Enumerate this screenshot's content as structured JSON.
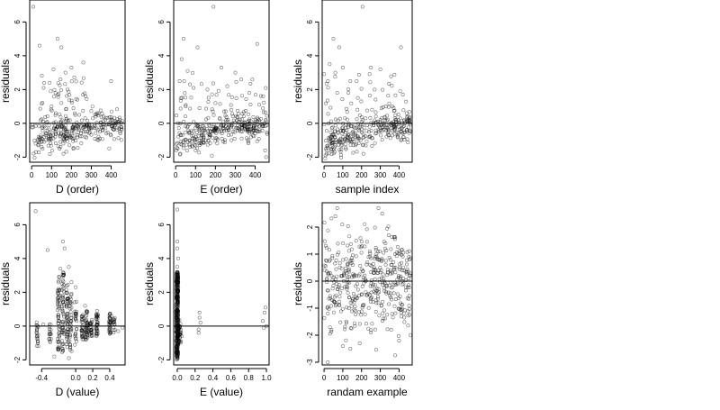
{
  "colors": {
    "point": "#000000",
    "point_opacity": 0.55,
    "line": "#000000"
  },
  "chart_data": [
    {
      "type": "scatter",
      "id": "p1",
      "xlabel": "D (order)",
      "ylabel": "residuals",
      "xlim": [
        -10,
        470
      ],
      "ylim": [
        -2.3,
        7.3
      ],
      "xticks": [
        0,
        100,
        200,
        300,
        400
      ],
      "xtick_labels": [
        "0",
        "100",
        "200",
        "300",
        "400"
      ],
      "yticks": [
        -2,
        0,
        2,
        4,
        6
      ],
      "ytick_labels": [
        "-2",
        "0",
        "2",
        "4",
        "6"
      ],
      "hline": 0,
      "n": 450,
      "points": [
        [
          8,
          6.9
        ],
        [
          40,
          4.6
        ],
        [
          130,
          5.0
        ],
        [
          150,
          4.5
        ],
        [
          260,
          3.6
        ],
        [
          110,
          3.2
        ],
        [
          170,
          3.0
        ],
        [
          200,
          3.3
        ],
        [
          145,
          2.6
        ],
        [
          90,
          2.4
        ],
        [
          180,
          2.0
        ],
        [
          60,
          2.1
        ],
        [
          230,
          1.4
        ],
        [
          120,
          1.8
        ],
        [
          150,
          1.2
        ],
        [
          210,
          0.9
        ],
        [
          100,
          1.0
        ],
        [
          240,
          0.5
        ],
        [
          330,
          0.6
        ],
        [
          400,
          2.5
        ],
        [
          20,
          -1.2
        ],
        [
          35,
          -0.8
        ],
        [
          50,
          -1.4
        ],
        [
          70,
          -0.6
        ],
        [
          90,
          -1.0
        ],
        [
          140,
          -1.5
        ],
        [
          160,
          -1.8
        ],
        [
          190,
          -1.3
        ],
        [
          210,
          -1.5
        ],
        [
          230,
          -0.7
        ],
        [
          260,
          -0.5
        ],
        [
          300,
          -0.3
        ],
        [
          350,
          -0.2
        ],
        [
          420,
          -0.1
        ],
        [
          440,
          -0.3
        ]
      ],
      "band": {
        "x_from": 0,
        "x_to": 460,
        "center": [
          [
            0,
            -0.9
          ],
          [
            100,
            -0.8
          ],
          [
            200,
            -0.6
          ],
          [
            300,
            -0.2
          ],
          [
            460,
            -0.1
          ]
        ],
        "spread": 0.45,
        "count": 260,
        "seed": 1
      },
      "spread_cloud": {
        "x_from": 40,
        "x_to": 290,
        "y_from": -0.3,
        "y_to": 3.0,
        "count": 70,
        "seed": 2
      }
    },
    {
      "type": "scatter",
      "id": "p2",
      "xlabel": "E (order)",
      "ylabel": "residuals",
      "xlim": [
        -10,
        470
      ],
      "ylim": [
        -2.3,
        7.3
      ],
      "xticks": [
        0,
        100,
        200,
        300,
        400
      ],
      "xtick_labels": [
        "0",
        "100",
        "200",
        "300",
        "400"
      ],
      "yticks": [
        -2,
        0,
        2,
        4,
        6
      ],
      "ytick_labels": [
        "-2",
        "0",
        "2",
        "4",
        "6"
      ],
      "hline": 0,
      "n": 450,
      "points": [
        [
          190,
          6.9
        ],
        [
          40,
          5.0
        ],
        [
          110,
          4.5
        ],
        [
          410,
          4.7
        ],
        [
          30,
          3.8
        ],
        [
          60,
          3.1
        ],
        [
          230,
          3.3
        ],
        [
          300,
          3.0
        ],
        [
          330,
          2.6
        ],
        [
          20,
          2.5
        ],
        [
          90,
          2.1
        ],
        [
          160,
          2.0
        ],
        [
          260,
          2.2
        ],
        [
          370,
          1.8
        ],
        [
          440,
          1.6
        ],
        [
          200,
          1.2
        ],
        [
          120,
          0.9
        ],
        [
          50,
          1.0
        ],
        [
          280,
          0.8
        ],
        [
          420,
          1.1
        ],
        [
          10,
          -1.5
        ],
        [
          40,
          -1.3
        ],
        [
          70,
          -1.0
        ],
        [
          100,
          -1.6
        ],
        [
          130,
          -1.2
        ],
        [
          170,
          -0.7
        ],
        [
          220,
          -0.5
        ],
        [
          260,
          -0.3
        ],
        [
          320,
          -0.4
        ],
        [
          360,
          -0.2
        ],
        [
          400,
          -0.6
        ],
        [
          450,
          -1.6
        ],
        [
          455,
          -2.0
        ]
      ],
      "band": {
        "x_from": 0,
        "x_to": 460,
        "center": [
          [
            0,
            -1.1
          ],
          [
            100,
            -0.9
          ],
          [
            200,
            -0.5
          ],
          [
            300,
            -0.1
          ],
          [
            460,
            -0.2
          ]
        ],
        "spread": 0.45,
        "count": 260,
        "seed": 3
      },
      "spread_cloud": {
        "x_from": 0,
        "x_to": 460,
        "y_from": -0.3,
        "y_to": 3.0,
        "count": 80,
        "seed": 4
      }
    },
    {
      "type": "scatter",
      "id": "p3",
      "xlabel": "sample index",
      "ylabel": "residuals",
      "xlim": [
        -10,
        470
      ],
      "ylim": [
        -2.3,
        7.3
      ],
      "xticks": [
        0,
        100,
        200,
        300,
        400
      ],
      "xtick_labels": [
        "0",
        "100",
        "200",
        "300",
        "400"
      ],
      "yticks": [
        -2,
        0,
        2,
        4,
        6
      ],
      "ytick_labels": [
        "-2",
        "0",
        "2",
        "4",
        "6"
      ],
      "hline": 0,
      "n": 450,
      "points": [
        [
          205,
          6.9
        ],
        [
          50,
          5.0
        ],
        [
          80,
          4.5
        ],
        [
          410,
          4.5
        ],
        [
          30,
          3.5
        ],
        [
          60,
          3.0
        ],
        [
          100,
          3.3
        ],
        [
          250,
          3.3
        ],
        [
          300,
          3.2
        ],
        [
          20,
          2.5
        ],
        [
          140,
          2.5
        ],
        [
          270,
          2.0
        ],
        [
          420,
          1.7
        ],
        [
          180,
          1.5
        ],
        [
          70,
          1.8
        ],
        [
          330,
          1.0
        ],
        [
          440,
          0.6
        ],
        [
          10,
          -1.5
        ],
        [
          30,
          -1.1
        ],
        [
          60,
          -1.3
        ],
        [
          90,
          -0.9
        ],
        [
          120,
          -1.0
        ],
        [
          150,
          -0.8
        ],
        [
          210,
          -1.8
        ],
        [
          240,
          -0.5
        ],
        [
          290,
          -0.4
        ],
        [
          340,
          -0.3
        ],
        [
          380,
          -0.2
        ],
        [
          410,
          -1.0
        ],
        [
          440,
          -0.4
        ]
      ],
      "band": {
        "x_from": 0,
        "x_to": 460,
        "center": [
          [
            0,
            -1.2
          ],
          [
            100,
            -0.9
          ],
          [
            200,
            -0.6
          ],
          [
            300,
            -0.2
          ],
          [
            460,
            -0.3
          ]
        ],
        "spread": 0.45,
        "count": 260,
        "seed": 5
      },
      "spread_cloud": {
        "x_from": 0,
        "x_to": 460,
        "y_from": -0.3,
        "y_to": 3.0,
        "count": 80,
        "seed": 6
      }
    },
    {
      "type": "scatter",
      "id": "p4",
      "xlabel": "D (value)",
      "ylabel": "residuals",
      "xlim": [
        -0.54,
        0.58
      ],
      "ylim": [
        -2.3,
        7.3
      ],
      "xticks": [
        -0.4,
        0.0,
        0.2,
        0.4
      ],
      "xtick_labels": [
        "-0.4",
        "0.0",
        "0.2",
        "0.4"
      ],
      "yticks": [
        -2,
        0,
        2,
        4,
        6
      ],
      "ytick_labels": [
        "-2",
        "0",
        "2",
        "4",
        "6"
      ],
      "hline": 0,
      "n": 450,
      "points": [
        [
          -0.47,
          6.8
        ],
        [
          -0.33,
          4.5
        ],
        [
          -0.15,
          5.0
        ],
        [
          -0.13,
          4.6
        ],
        [
          -0.18,
          3.4
        ],
        [
          -0.08,
          3.5
        ],
        [
          -0.05,
          2.6
        ],
        [
          -0.2,
          2.2
        ],
        [
          0.0,
          2.3
        ],
        [
          -0.1,
          1.5
        ],
        [
          0.11,
          1.2
        ],
        [
          0.25,
          0.9
        ],
        [
          0.42,
          0.6
        ],
        [
          -0.38,
          0.1
        ],
        [
          -0.3,
          -0.5
        ],
        [
          0.5,
          -0.3
        ],
        [
          0.55,
          -0.1
        ],
        [
          -0.25,
          -1.8
        ],
        [
          -0.08,
          -1.9
        ]
      ],
      "column_clusters": [
        {
          "x": -0.45,
          "y_from": -1.2,
          "y_to": 0.3,
          "count": 20
        },
        {
          "x": -0.3,
          "y_from": -1.0,
          "y_to": 0.2,
          "count": 15
        },
        {
          "x": -0.2,
          "y_from": -1.5,
          "y_to": 3.0,
          "count": 55
        },
        {
          "x": -0.15,
          "y_from": -1.6,
          "y_to": 3.3,
          "count": 55
        },
        {
          "x": -0.1,
          "y_from": -1.4,
          "y_to": 2.8,
          "count": 45
        },
        {
          "x": -0.06,
          "y_from": -1.5,
          "y_to": 2.0,
          "count": 35
        },
        {
          "x": 0.0,
          "y_from": -1.2,
          "y_to": 1.5,
          "count": 25
        },
        {
          "x": 0.08,
          "y_from": -0.8,
          "y_to": 0.7,
          "count": 30
        },
        {
          "x": 0.13,
          "y_from": -0.9,
          "y_to": 0.9,
          "count": 40
        },
        {
          "x": 0.18,
          "y_from": -0.6,
          "y_to": 0.4,
          "count": 25
        },
        {
          "x": 0.25,
          "y_from": -0.6,
          "y_to": 0.7,
          "count": 35
        },
        {
          "x": 0.4,
          "y_from": -0.5,
          "y_to": 0.8,
          "count": 30
        },
        {
          "x": 0.45,
          "y_from": -0.4,
          "y_to": 0.5,
          "count": 15
        }
      ],
      "seed": 7
    },
    {
      "type": "scatter",
      "id": "p5",
      "xlabel": "E (value)",
      "ylabel": "residuals",
      "xlim": [
        -0.04,
        1.03
      ],
      "ylim": [
        -2.3,
        7.3
      ],
      "xticks": [
        0.0,
        0.2,
        0.4,
        0.6,
        0.8,
        1.0
      ],
      "xtick_labels": [
        "0.0",
        "0.2",
        "0.4",
        "0.6",
        "0.8",
        "1.0"
      ],
      "yticks": [
        -2,
        0,
        2,
        4,
        6
      ],
      "ytick_labels": [
        "-2",
        "0",
        "2",
        "4",
        "6"
      ],
      "hline": 0,
      "n": 450,
      "points": [
        [
          0.0,
          6.9
        ],
        [
          0.0,
          5.0
        ],
        [
          0.0,
          4.6
        ],
        [
          0.01,
          4.0
        ],
        [
          0.0,
          3.5
        ],
        [
          0.04,
          -0.5
        ],
        [
          0.05,
          -0.6
        ],
        [
          0.25,
          0.8
        ],
        [
          0.25,
          0.5
        ],
        [
          0.26,
          0.2
        ],
        [
          0.24,
          -0.2
        ],
        [
          0.24,
          -0.4
        ],
        [
          0.96,
          0.3
        ],
        [
          0.98,
          0.8
        ],
        [
          0.99,
          1.1
        ],
        [
          0.97,
          -0.1
        ],
        [
          1.0,
          0.0
        ]
      ],
      "column_clusters": [
        {
          "x": 0.0,
          "y_from": -2.0,
          "y_to": 3.2,
          "count": 330,
          "jitter": 0.012
        },
        {
          "x": 0.03,
          "y_from": -1.0,
          "y_to": 0.5,
          "count": 25,
          "jitter": 0.012
        }
      ],
      "seed": 8
    },
    {
      "type": "scatter",
      "id": "p6",
      "xlabel": "randam example",
      "ylabel": "residuals",
      "xlim": [
        -10,
        470
      ],
      "ylim": [
        -3.1,
        2.9
      ],
      "xticks": [
        0,
        100,
        200,
        300,
        400
      ],
      "xtick_labels": [
        "0",
        "100",
        "200",
        "300",
        "400"
      ],
      "yticks": [
        -3,
        -2,
        -1,
        0,
        1,
        2
      ],
      "ytick_labels": [
        "-3",
        "-2",
        "-1",
        "0",
        "1",
        "2"
      ],
      "hline": 0,
      "n": 450,
      "points": [
        [
          60,
          2.4
        ],
        [
          70,
          2.7
        ],
        [
          290,
          2.7
        ],
        [
          310,
          2.5
        ],
        [
          100,
          -2.4
        ],
        [
          140,
          -2.5
        ],
        [
          20,
          -3.0
        ],
        [
          400,
          -2.2
        ],
        [
          190,
          -2.3
        ],
        [
          250,
          -1.9
        ],
        [
          40,
          -1.8
        ]
      ],
      "normal_cloud": {
        "x_from": 0,
        "x_to": 460,
        "sd": 0.95,
        "count": 440,
        "seed": 9
      }
    }
  ]
}
